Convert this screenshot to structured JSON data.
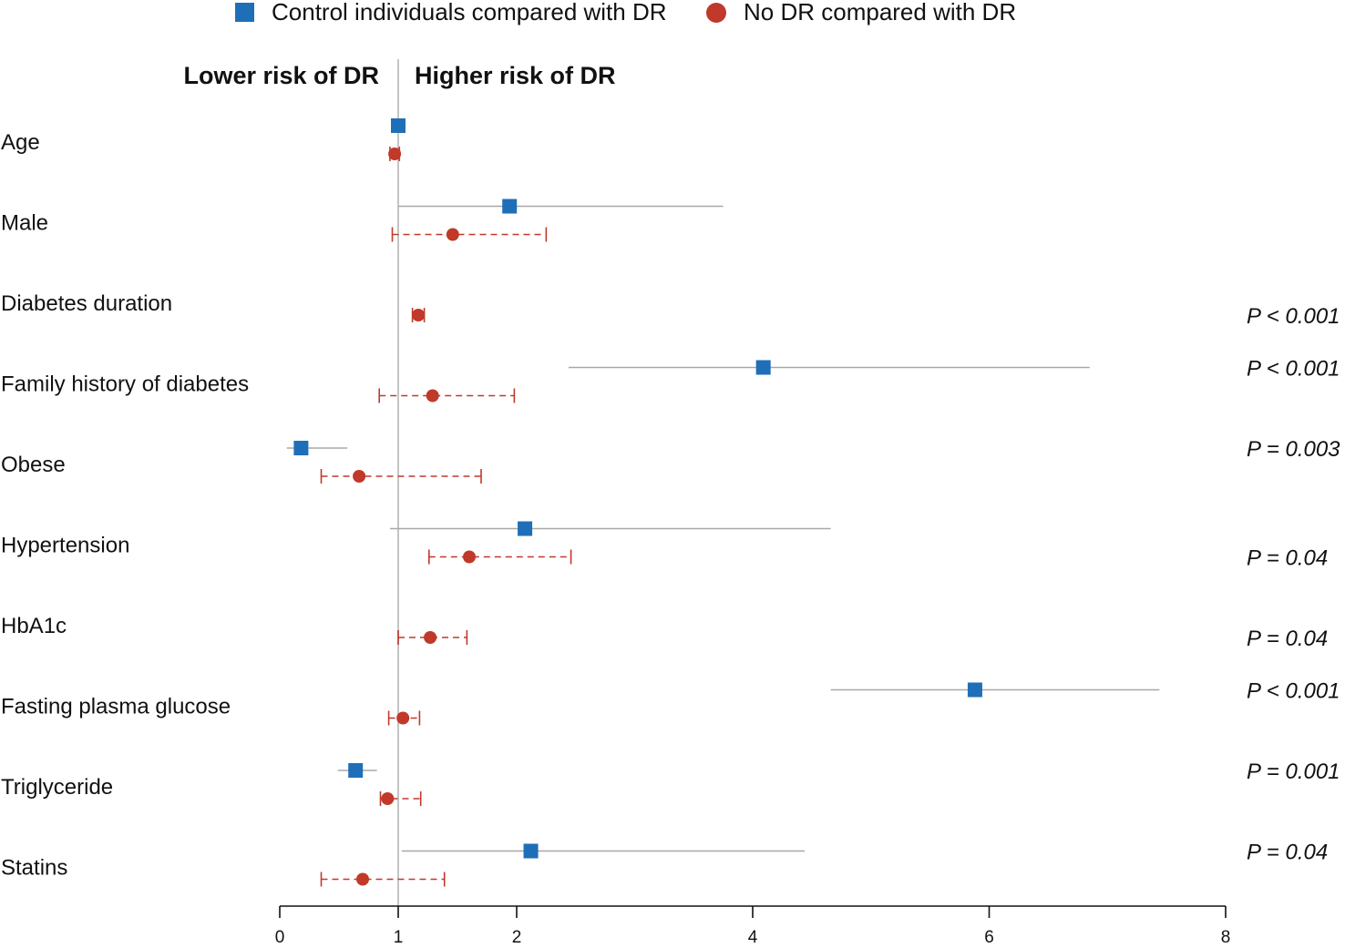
{
  "chart_data": {
    "type": "forest",
    "legend": [
      {
        "name": "Control individuals compared with DR",
        "marker": "square",
        "color": "#1f6fb8"
      },
      {
        "name": "No DR compared with DR",
        "marker": "circle",
        "color": "#c0392b"
      }
    ],
    "headers": {
      "left": "Lower risk of DR",
      "right": "Higher risk of DR"
    },
    "reference_value": 1,
    "x_ticks": [
      {
        "value": 0,
        "label": "0"
      },
      {
        "value": 1,
        "label": "1"
      },
      {
        "value": 2,
        "label": "2"
      },
      {
        "value": 4,
        "label": "4"
      },
      {
        "value": 6,
        "label": "6"
      },
      {
        "value": 8,
        "label": "8"
      }
    ],
    "rows": [
      {
        "label": "Age",
        "control": {
          "est": 1.0,
          "lo": null,
          "hi": null
        },
        "nodr": {
          "est": 0.97,
          "lo": 0.93,
          "hi": 1.01
        },
        "pvalues": []
      },
      {
        "label": "Male",
        "control": {
          "est": 1.94,
          "lo": 1.0,
          "hi": 3.75
        },
        "nodr": {
          "est": 1.46,
          "lo": 0.95,
          "hi": 2.25
        },
        "pvalues": []
      },
      {
        "label": "Diabetes duration",
        "control": null,
        "nodr": {
          "est": 1.17,
          "lo": 1.12,
          "hi": 1.22
        },
        "pvalues": [
          {
            "text": "P < 0.001",
            "series": "nodr"
          }
        ]
      },
      {
        "label": "Family history of diabetes",
        "control": {
          "est": 4.09,
          "lo": 2.44,
          "hi": 6.85
        },
        "nodr": {
          "est": 1.29,
          "lo": 0.84,
          "hi": 1.98
        },
        "pvalues": [
          {
            "text": "P < 0.001",
            "series": "control"
          }
        ]
      },
      {
        "label": "Obese",
        "control": {
          "est": 0.18,
          "lo": 0.06,
          "hi": 0.57
        },
        "nodr": {
          "est": 0.67,
          "lo": 0.35,
          "hi": 1.7
        },
        "pvalues": [
          {
            "text": "P = 0.003",
            "series": "control"
          }
        ]
      },
      {
        "label": "Hypertension",
        "control": {
          "est": 2.07,
          "lo": 0.93,
          "hi": 4.66
        },
        "nodr": {
          "est": 1.6,
          "lo": 1.26,
          "hi": 2.46
        },
        "pvalues": [
          {
            "text": "P = 0.04",
            "series": "nodr"
          }
        ]
      },
      {
        "label": "HbA1c",
        "control": null,
        "nodr": {
          "est": 1.27,
          "lo": 1.0,
          "hi": 1.58
        },
        "pvalues": [
          {
            "text": "P = 0.04",
            "series": "nodr"
          }
        ]
      },
      {
        "label": "Fasting plasma glucose",
        "control": {
          "est": 5.88,
          "lo": 4.66,
          "hi": 7.44
        },
        "nodr": {
          "est": 1.04,
          "lo": 0.92,
          "hi": 1.18
        },
        "pvalues": [
          {
            "text": "P < 0.001",
            "series": "control"
          }
        ]
      },
      {
        "label": "Triglyceride",
        "control": {
          "est": 0.64,
          "lo": 0.49,
          "hi": 0.82
        },
        "nodr": {
          "est": 0.91,
          "lo": 0.85,
          "hi": 1.19
        },
        "pvalues": [
          {
            "text": "P = 0.001",
            "series": "control"
          }
        ]
      },
      {
        "label": "Statins",
        "control": {
          "est": 2.12,
          "lo": 1.03,
          "hi": 4.44
        },
        "nodr": {
          "est": 0.7,
          "lo": 0.35,
          "hi": 1.39
        },
        "pvalues": [
          {
            "text": "P = 0.04",
            "series": "control"
          }
        ]
      }
    ]
  }
}
